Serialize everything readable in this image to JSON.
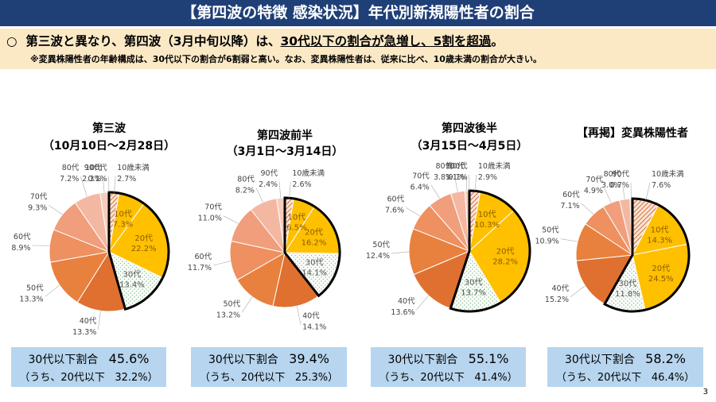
{
  "header": {
    "title": "【第四波の特徴 感染状況】年代別新規陽性者の割合",
    "bullet": "○",
    "headline_pre": "第三波と異なり、第四波（3月中旬以降）は、",
    "headline_em": "30代以下の割合が急増し、5割を超過",
    "headline_post": "。",
    "note": "※変異株陽性者の年齢構成は、30代以下の割合が6割弱と高い。なお、変異株陽性者は、従来に比べ、10歳未満の割合が大きい。"
  },
  "colors": {
    "title_bg": "#1f3f77",
    "banner_bg": "#fbe9c6",
    "summary_bg": "#b7d5ee",
    "under10": "#fbe3d4",
    "under10_hatch": "#c25a1e",
    "age10": "#ffc000",
    "age20": "#ffc000",
    "age30": "#ffffff",
    "age30_dots": "#9ccc9c",
    "age40": "#e07030",
    "age50": "#e8803e",
    "age60": "#ee9060",
    "age70": "#f09e7c",
    "age80": "#f4b8a2",
    "age90": "#f7ccbc",
    "age100": "#fadcd0"
  },
  "chart_data": [
    {
      "type": "pie",
      "title": "第三波",
      "subtitle": "（10月10日～2月28日）",
      "categories": [
        "10歳未満",
        "10代",
        "20代",
        "30代",
        "40代",
        "50代",
        "60代",
        "70代",
        "80代",
        "90代",
        "100代"
      ],
      "values": [
        2.7,
        7.3,
        22.2,
        13.4,
        13.3,
        13.3,
        8.9,
        9.3,
        7.2,
        2.3,
        0.1
      ],
      "labels": [
        "2.7%",
        "7.3%",
        "22.2%",
        "13.4%",
        "13.3%",
        "13.3%",
        "8.9%",
        "9.3%",
        "7.2%",
        "2.3%",
        "0.1%"
      ],
      "summary_label": "30代以下割合",
      "summary_value": "45.6%",
      "summary_sub_label": "（うち、20代以下",
      "summary_sub_value": "32.2%）"
    },
    {
      "type": "pie",
      "title": "第四波前半",
      "subtitle": "（3月1日～3月14日）",
      "categories": [
        "10歳未満",
        "10代",
        "20代",
        "30代",
        "40代",
        "50代",
        "60代",
        "70代",
        "80代",
        "90代"
      ],
      "values": [
        2.6,
        6.5,
        16.2,
        14.1,
        14.1,
        13.2,
        11.7,
        11.0,
        8.2,
        2.4
      ],
      "labels": [
        "2.6%",
        "6.5%",
        "16.2%",
        "14.1%",
        "14.1%",
        "13.2%",
        "11.7%",
        "11.0%",
        "8.2%",
        "2.4%"
      ],
      "summary_label": "30代以下割合",
      "summary_value": "39.4%",
      "summary_sub_label": "（うち、20代以下",
      "summary_sub_value": "25.3%）"
    },
    {
      "type": "pie",
      "title": "第四波後半",
      "subtitle": "（3月15日～4月5日）",
      "categories": [
        "10歳未満",
        "10代",
        "20代",
        "30代",
        "40代",
        "50代",
        "60代",
        "70代",
        "80代",
        "90代",
        "100代"
      ],
      "values": [
        2.9,
        10.3,
        28.2,
        13.7,
        13.6,
        12.4,
        7.6,
        6.4,
        3.8,
        1.1,
        0.1
      ],
      "labels": [
        "2.9%",
        "10.3%",
        "28.2%",
        "13.7%",
        "13.6%",
        "12.4%",
        "7.6%",
        "6.4%",
        "3.8%",
        "1.1%",
        "0.1%"
      ],
      "summary_label": "30代以下割合",
      "summary_value": "55.1%",
      "summary_sub_label": "（うち、20代以下",
      "summary_sub_value": "41.4%）"
    },
    {
      "type": "pie",
      "title": "【再掲】変異株陽性者",
      "subtitle": "",
      "categories": [
        "10歳未満",
        "10代",
        "20代",
        "30代",
        "40代",
        "50代",
        "60代",
        "70代",
        "80代",
        "90代"
      ],
      "values": [
        7.6,
        14.3,
        24.5,
        11.8,
        15.2,
        10.9,
        7.1,
        4.9,
        3.0,
        0.7
      ],
      "labels": [
        "7.6%",
        "14.3%",
        "24.5%",
        "11.8%",
        "15.2%",
        "10.9%",
        "7.1%",
        "4.9%",
        "3.0%",
        "0.7%"
      ],
      "summary_label": "30代以下割合",
      "summary_value": "58.2%",
      "summary_sub_label": "（うち、20代以下",
      "summary_sub_value": "46.4%）"
    }
  ],
  "page_number": "3"
}
